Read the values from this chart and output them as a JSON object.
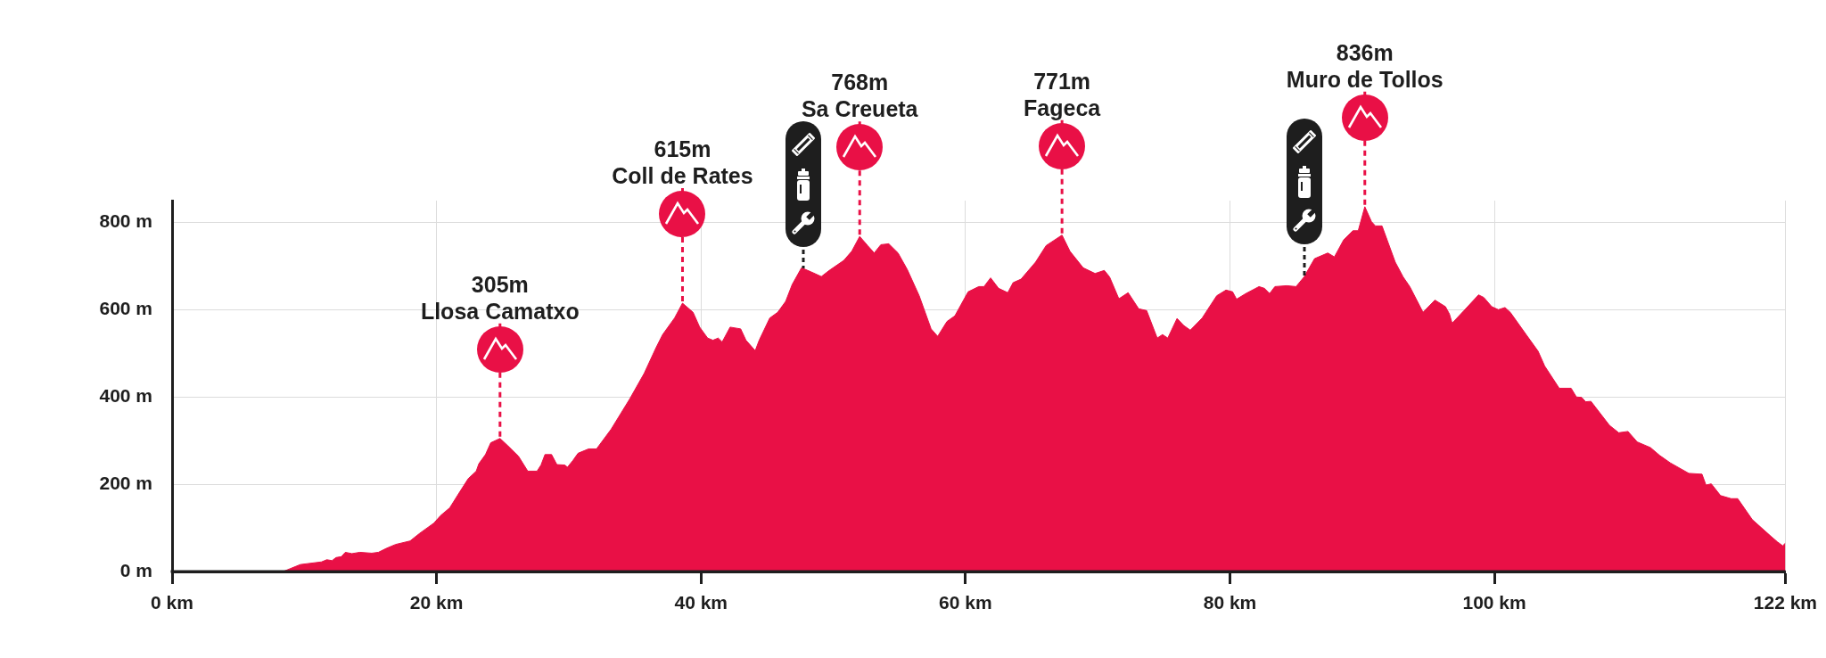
{
  "chart_data": {
    "type": "area",
    "x": [
      0,
      8.4,
      9.7,
      11.3,
      11.7,
      12.1,
      12.4,
      12.8,
      13.1,
      13.6,
      14.2,
      15.1,
      15.6,
      16.2,
      16.9,
      18.0,
      18.7,
      19.8,
      20.3,
      21.0,
      21.6,
      22.4,
      23.0,
      23.2,
      23.7,
      24.1,
      24.8,
      25.4,
      26.2,
      26.9,
      27.6,
      27.9,
      28.2,
      28.7,
      29.1,
      29.7,
      29.9,
      30.3,
      30.7,
      31.5,
      32.1,
      33.2,
      34.6,
      35.7,
      36.6,
      37.1,
      38.0,
      38.6,
      39.4,
      39.9,
      40.5,
      40.9,
      41.3,
      41.6,
      42.2,
      43.0,
      43.4,
      44.1,
      44.4,
      45.2,
      45.8,
      46.4,
      46.9,
      47.6,
      48.3,
      49.1,
      49.7,
      50.8,
      51.4,
      52.0,
      52.6,
      53.1,
      53.6,
      54.2,
      54.9,
      55.6,
      56.5,
      57.4,
      57.9,
      58.6,
      59.2,
      60.2,
      61.0,
      61.4,
      61.9,
      62.5,
      63.2,
      63.6,
      64.2,
      65.3,
      66.1,
      67.3,
      67.9,
      68.9,
      69.8,
      70.5,
      70.9,
      71.6,
      72.3,
      73.1,
      73.7,
      74.5,
      74.9,
      75.3,
      76.0,
      76.5,
      77.0,
      77.9,
      79.0,
      79.7,
      80.2,
      80.5,
      81.2,
      82.2,
      82.6,
      83.0,
      83.4,
      84.3,
      85.0,
      85.6,
      86.4,
      87.4,
      87.9,
      88.6,
      89.3,
      89.7,
      90.2,
      90.7,
      91.0,
      91.5,
      92.5,
      93.1,
      93.6,
      94.6,
      95.5,
      96.3,
      96.6,
      96.8,
      97.7,
      98.8,
      99.2,
      99.8,
      100.3,
      100.8,
      101.2,
      102.4,
      103.3,
      103.8,
      104.9,
      105.8,
      106.2,
      106.6,
      106.9,
      107.3,
      108.7,
      109.4,
      110.1,
      110.8,
      111.8,
      112.5,
      113.3,
      114.7,
      115.7,
      116.0,
      116.4,
      117.1,
      117.9,
      118.4,
      119.5,
      120.9,
      121.4,
      121.8,
      122.0
    ],
    "values": [
      0,
      0,
      16,
      22,
      27,
      25,
      32,
      34,
      44,
      41,
      44,
      42,
      44,
      53,
      62,
      70,
      87,
      111,
      128,
      146,
      175,
      213,
      230,
      247,
      268,
      295,
      305,
      288,
      264,
      230,
      230,
      244,
      268,
      268,
      245,
      244,
      239,
      254,
      271,
      281,
      281,
      326,
      395,
      454,
      513,
      543,
      581,
      615,
      594,
      560,
      535,
      530,
      535,
      526,
      560,
      556,
      530,
      506,
      530,
      581,
      594,
      619,
      658,
      696,
      687,
      676,
      690,
      713,
      734,
      768,
      747,
      730,
      749,
      751,
      730,
      692,
      632,
      556,
      539,
      573,
      586,
      641,
      653,
      653,
      673,
      649,
      639,
      662,
      670,
      709,
      747,
      771,
      734,
      696,
      683,
      690,
      675,
      625,
      639,
      602,
      598,
      535,
      543,
      535,
      580,
      564,
      553,
      581,
      632,
      645,
      641,
      624,
      637,
      653,
      649,
      637,
      653,
      655,
      653,
      675,
      717,
      730,
      721,
      760,
      781,
      781,
      836,
      802,
      792,
      792,
      709,
      675,
      653,
      594,
      622,
      607,
      590,
      569,
      598,
      634,
      628,
      607,
      600,
      605,
      594,
      543,
      505,
      471,
      420,
      420,
      400,
      399,
      389,
      390,
      335,
      318,
      321,
      297,
      284,
      266,
      249,
      225,
      223,
      198,
      201,
      174,
      167,
      167,
      119,
      81,
      68,
      59,
      65
    ],
    "color": "#e91046",
    "xlim": [
      0,
      122
    ],
    "xticks": [
      {
        "value": 0,
        "label": "0 km"
      },
      {
        "value": 20,
        "label": "20 km"
      },
      {
        "value": 40,
        "label": "40 km"
      },
      {
        "value": 60,
        "label": "60 km"
      },
      {
        "value": 80,
        "label": "80 km"
      },
      {
        "value": 100,
        "label": "100 km"
      },
      {
        "value": 122,
        "label": "122 km"
      }
    ],
    "ylim": [
      0,
      850
    ],
    "yticks": [
      {
        "value": 0,
        "label": "0 m"
      },
      {
        "value": 200,
        "label": "200 m"
      },
      {
        "value": 400,
        "label": "400 m"
      },
      {
        "value": 600,
        "label": "600 m"
      },
      {
        "value": 800,
        "label": "800 m"
      }
    ],
    "grid": true,
    "annotations": [
      {
        "text": "305m\nLlosa Camatxo",
        "x": 24.8,
        "y": 305
      },
      {
        "text": "615m\nColl de Rates",
        "x": 38.6,
        "y": 615
      },
      {
        "text": "768m\nSa Creueta",
        "x": 52.0,
        "y": 768
      },
      {
        "text": "771m\nFageca",
        "x": 67.3,
        "y": 771
      },
      {
        "text": "836m\nMuro de Tollos",
        "x": 90.2,
        "y": 836
      }
    ]
  }
}
